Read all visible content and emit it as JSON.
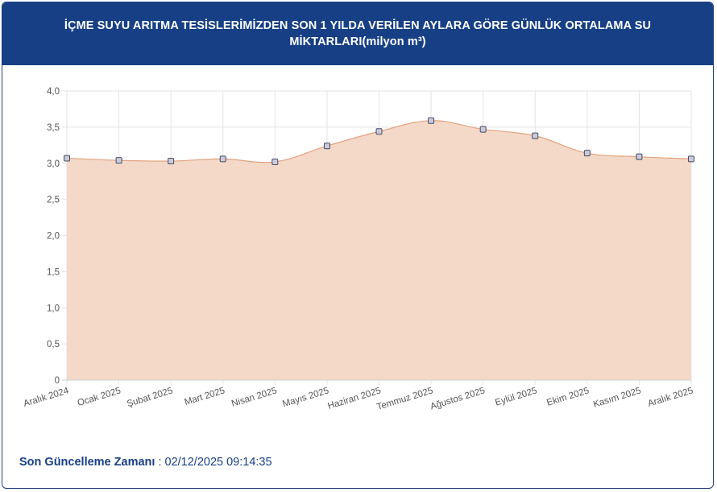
{
  "header": {
    "title": "İÇME SUYU ARITMA TESİSLERİMİZDEN SON 1 YILDA VERİLEN AYLARA GÖRE GÜNLÜK ORTALAMA SU MİKTARLARI(milyon m³)"
  },
  "footer": {
    "label": "Son Güncelleme Zamanı",
    "separator": " : ",
    "value": "02/12/2025 09:14:35"
  },
  "colors": {
    "header_bg": "#173f86",
    "area_fill": "#f4d9c8",
    "line": "#e2a27f",
    "marker_fill": "#c9cbe0",
    "marker_stroke": "#4a4a5a"
  },
  "chart_data": {
    "type": "area",
    "categories": [
      "Aralık 2024",
      "Ocak 2025",
      "Şubat 2025",
      "Mart 2025",
      "Nisan 2025",
      "Mayıs 2025",
      "Haziran 2025",
      "Temmuz 2025",
      "Ağustos 2025",
      "Eylül 2025",
      "Ekim 2025",
      "Kasım 2025",
      "Aralık 2025"
    ],
    "values": [
      3.07,
      3.04,
      3.03,
      3.06,
      3.02,
      3.24,
      3.44,
      3.59,
      3.47,
      3.38,
      3.14,
      3.09,
      3.06
    ],
    "ylim": [
      0,
      4
    ],
    "yticks": [
      "0",
      "0,5",
      "1,0",
      "1,5",
      "2,0",
      "2,5",
      "3,0",
      "3,5",
      "4,0"
    ],
    "grid": true,
    "legend": "none"
  }
}
